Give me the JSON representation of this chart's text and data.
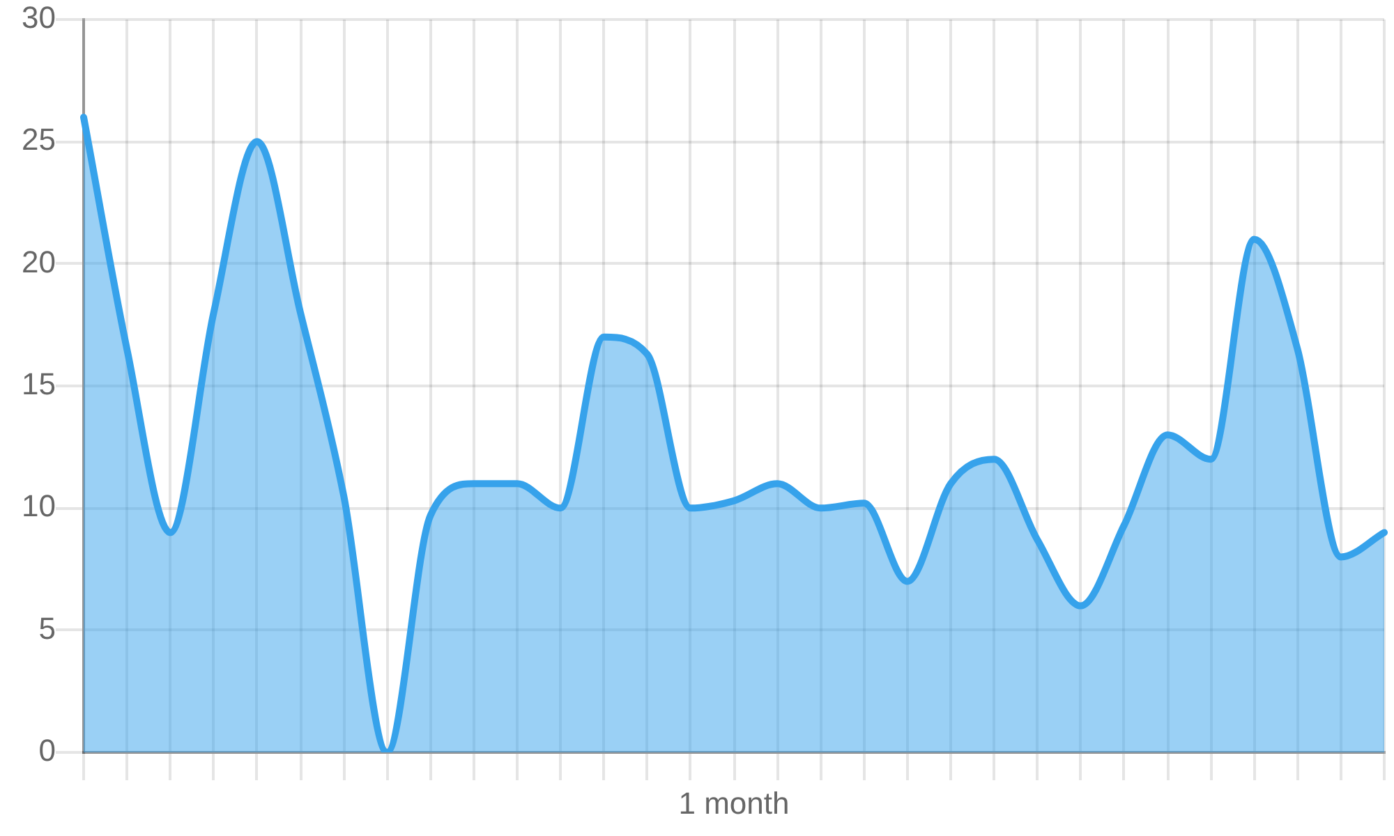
{
  "chart_data": {
    "type": "area",
    "xlabel": "1 month",
    "categories": [
      null,
      null,
      null,
      null,
      null,
      null,
      null,
      null,
      null,
      null,
      null,
      null,
      null,
      null,
      null,
      null,
      null,
      null,
      null,
      null,
      null,
      null,
      null,
      null,
      null,
      null,
      null,
      null,
      null,
      null,
      null
    ],
    "series": [
      {
        "color": "#36a2eb",
        "values": [
          26,
          16.5,
          9,
          18,
          25,
          18,
          10.5,
          0,
          9.7,
          11,
          11,
          10,
          17,
          16.3,
          10,
          10.3,
          11,
          10,
          10.2,
          7,
          11,
          12,
          8.7,
          6,
          9.3,
          13,
          12,
          21,
          16.5,
          8,
          9
        ]
      }
    ],
    "ylim": [
      0,
      30
    ],
    "yticks": [
      0,
      5,
      10,
      15,
      20,
      25,
      30
    ],
    "grid": true
  }
}
